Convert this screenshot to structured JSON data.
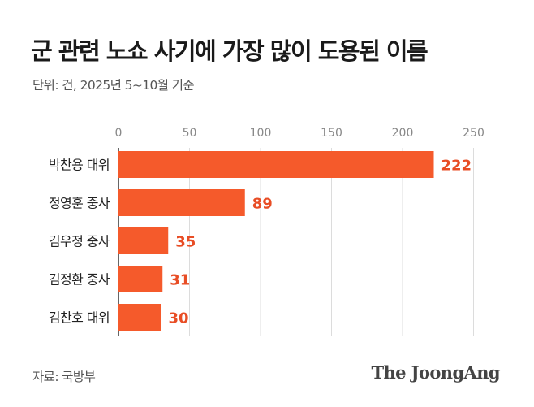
{
  "header": {
    "title": "군 관련 노쇼 사기에 가장 많이 도용된 이름",
    "subtitle": "단위: 건, 2025년 5~10월 기준"
  },
  "footer": {
    "source": "자료: 국방부",
    "brand": "The JoongAng"
  },
  "chart_data": {
    "type": "bar",
    "orientation": "horizontal",
    "categories": [
      "박찬용 대위",
      "정영훈 중사",
      "김우정 중사",
      "김정환 중사",
      "김찬호 대위"
    ],
    "values": [
      222,
      89,
      35,
      31,
      30
    ],
    "xlim": [
      0,
      250
    ],
    "ticks": [
      0,
      50,
      100,
      150,
      200,
      250
    ],
    "grid": true,
    "bar_color": "#f55a2b",
    "label_color": "#e84d25"
  }
}
